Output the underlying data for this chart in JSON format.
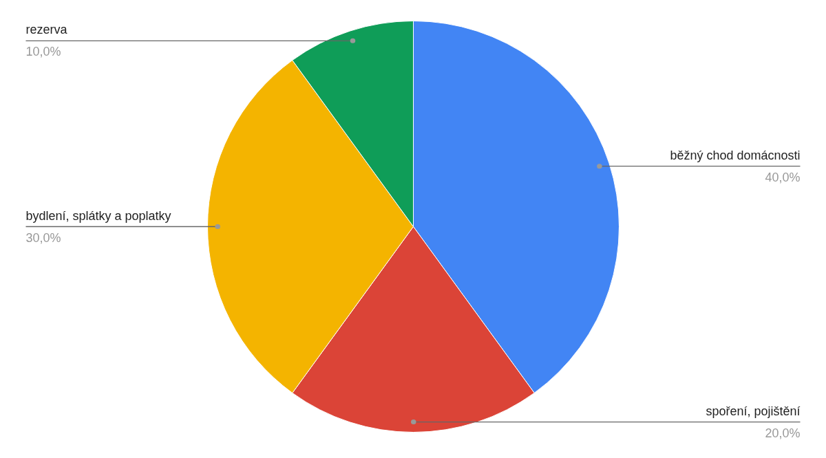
{
  "chart_data": {
    "type": "pie",
    "categories": [
      "běžný chod domácnosti",
      "spoření, pojištění",
      "bydlení, splátky a poplatky",
      "rezerva"
    ],
    "values": [
      40,
      20,
      30,
      10
    ],
    "colors": [
      "#4285f4",
      "#db4437",
      "#f4b400",
      "#0f9d58"
    ],
    "value_labels": [
      "40,0%",
      "20,0%",
      "30,0%",
      "10,0%"
    ]
  }
}
